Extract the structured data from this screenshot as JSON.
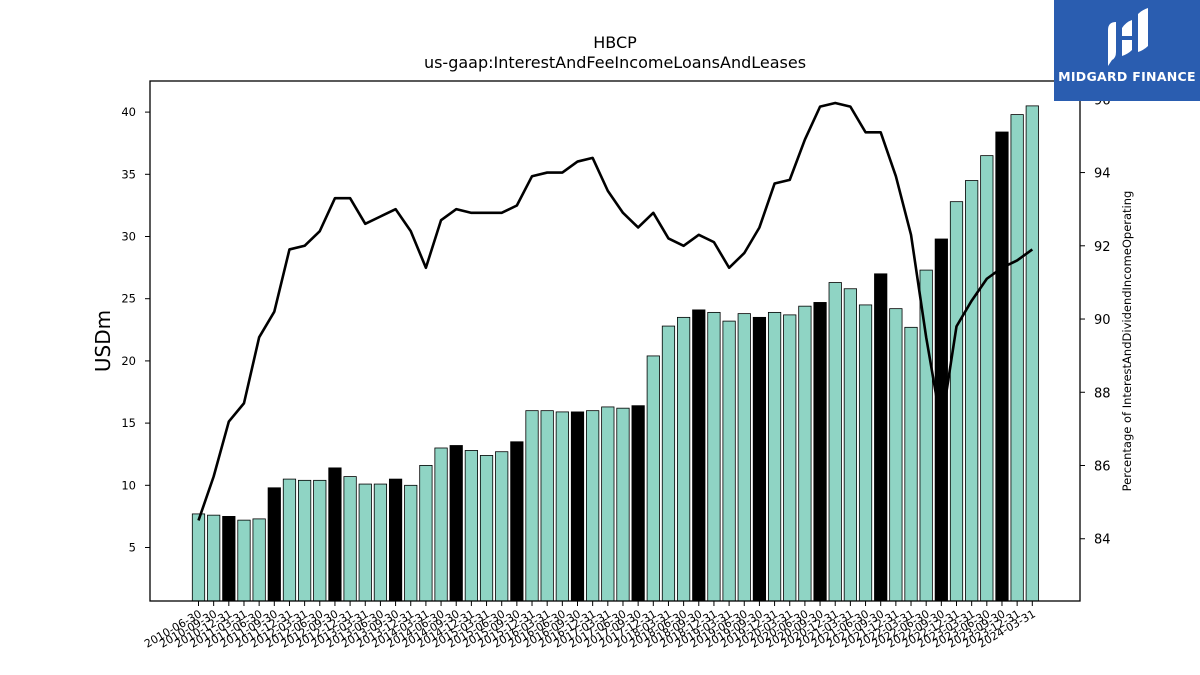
{
  "chart_data": {
    "type": "bar",
    "title": "HBCP",
    "subtitle": "us-gaap:InterestAndFeeIncomeLoansAndLeases",
    "ylabel": "USDm",
    "y2label": "Percentage of InterestAndDividendIncomeOperating",
    "ylim": [
      0.7,
      42.5
    ],
    "y2lim": [
      82.3,
      96.5
    ],
    "yticks": [
      5,
      10,
      15,
      20,
      25,
      30,
      35,
      40
    ],
    "y2ticks": [
      84,
      86,
      88,
      90,
      92,
      94,
      96
    ],
    "colors": {
      "bar": "#8fd4c4",
      "bar_q4": "#000000",
      "line": "#000000"
    },
    "categories": [
      "2010-06-30",
      "2010-09-30",
      "2010-12-31",
      "2011-03-31",
      "2011-06-30",
      "2011-09-30",
      "2011-12-31",
      "2012-03-31",
      "2012-06-30",
      "2012-09-30",
      "2012-12-31",
      "2013-03-31",
      "2013-06-30",
      "2013-09-30",
      "2013-12-31",
      "2014-03-31",
      "2014-06-30",
      "2014-09-30",
      "2014-12-31",
      "2015-03-31",
      "2015-06-30",
      "2015-09-30",
      "2015-12-31",
      "2016-03-31",
      "2016-06-30",
      "2016-09-30",
      "2016-12-31",
      "2017-03-31",
      "2017-06-30",
      "2017-09-30",
      "2017-12-31",
      "2018-03-31",
      "2018-06-30",
      "2018-09-30",
      "2018-12-31",
      "2019-03-31",
      "2019-06-30",
      "2019-09-30",
      "2019-12-31",
      "2020-03-31",
      "2020-06-30",
      "2020-09-30",
      "2020-12-31",
      "2021-03-31",
      "2021-06-30",
      "2021-09-30",
      "2021-12-31",
      "2022-03-31",
      "2022-06-30",
      "2022-09-30",
      "2022-12-31",
      "2023-03-31",
      "2023-06-30",
      "2023-09-30",
      "2023-12-31",
      "2024-03-31"
    ],
    "highlight": [
      false,
      false,
      true,
      false,
      false,
      true,
      false,
      false,
      false,
      true,
      false,
      false,
      false,
      true,
      false,
      false,
      false,
      true,
      false,
      false,
      false,
      true,
      false,
      false,
      false,
      true,
      false,
      false,
      false,
      true,
      false,
      false,
      false,
      true,
      false,
      false,
      false,
      true,
      false,
      false,
      false,
      true,
      false,
      false,
      false,
      true,
      false,
      false,
      false,
      true,
      false,
      false,
      false,
      true,
      false,
      false
    ],
    "series": [
      {
        "name": "USDm",
        "kind": "bar",
        "values": [
          7.7,
          7.6,
          7.5,
          7.2,
          7.3,
          9.8,
          10.5,
          10.4,
          10.4,
          11.4,
          10.7,
          10.1,
          10.1,
          10.5,
          10.0,
          11.6,
          13.0,
          13.2,
          12.8,
          12.4,
          12.7,
          13.5,
          16.0,
          16.0,
          15.9,
          15.9,
          16.0,
          16.3,
          16.2,
          16.4,
          20.4,
          22.8,
          23.5,
          24.1,
          23.9,
          23.2,
          23.8,
          23.5,
          23.9,
          23.7,
          24.4,
          24.7,
          26.3,
          25.8,
          24.5,
          27.0,
          24.2,
          22.7,
          27.3,
          29.8,
          32.8,
          34.5,
          36.5,
          38.4,
          39.8,
          40.5
        ]
      },
      {
        "name": "Percentage of InterestAndDividendIncomeOperating",
        "kind": "line",
        "values": [
          84.5,
          85.7,
          87.2,
          87.7,
          89.5,
          90.2,
          91.9,
          92.0,
          92.4,
          93.3,
          93.3,
          92.6,
          92.8,
          93.0,
          92.4,
          91.4,
          92.7,
          93.0,
          92.9,
          92.9,
          92.9,
          93.1,
          93.9,
          94.0,
          94.0,
          94.3,
          94.4,
          93.5,
          92.9,
          92.5,
          92.9,
          92.2,
          92.0,
          92.3,
          92.1,
          91.4,
          91.8,
          92.5,
          93.7,
          93.8,
          94.9,
          95.8,
          95.9,
          95.8,
          95.1,
          95.1,
          93.9,
          92.3,
          89.5,
          87.1,
          89.8,
          90.5,
          91.1,
          91.4,
          91.6,
          91.9
        ]
      }
    ]
  },
  "logo": {
    "brand": "MIDGARD FINANCE"
  }
}
